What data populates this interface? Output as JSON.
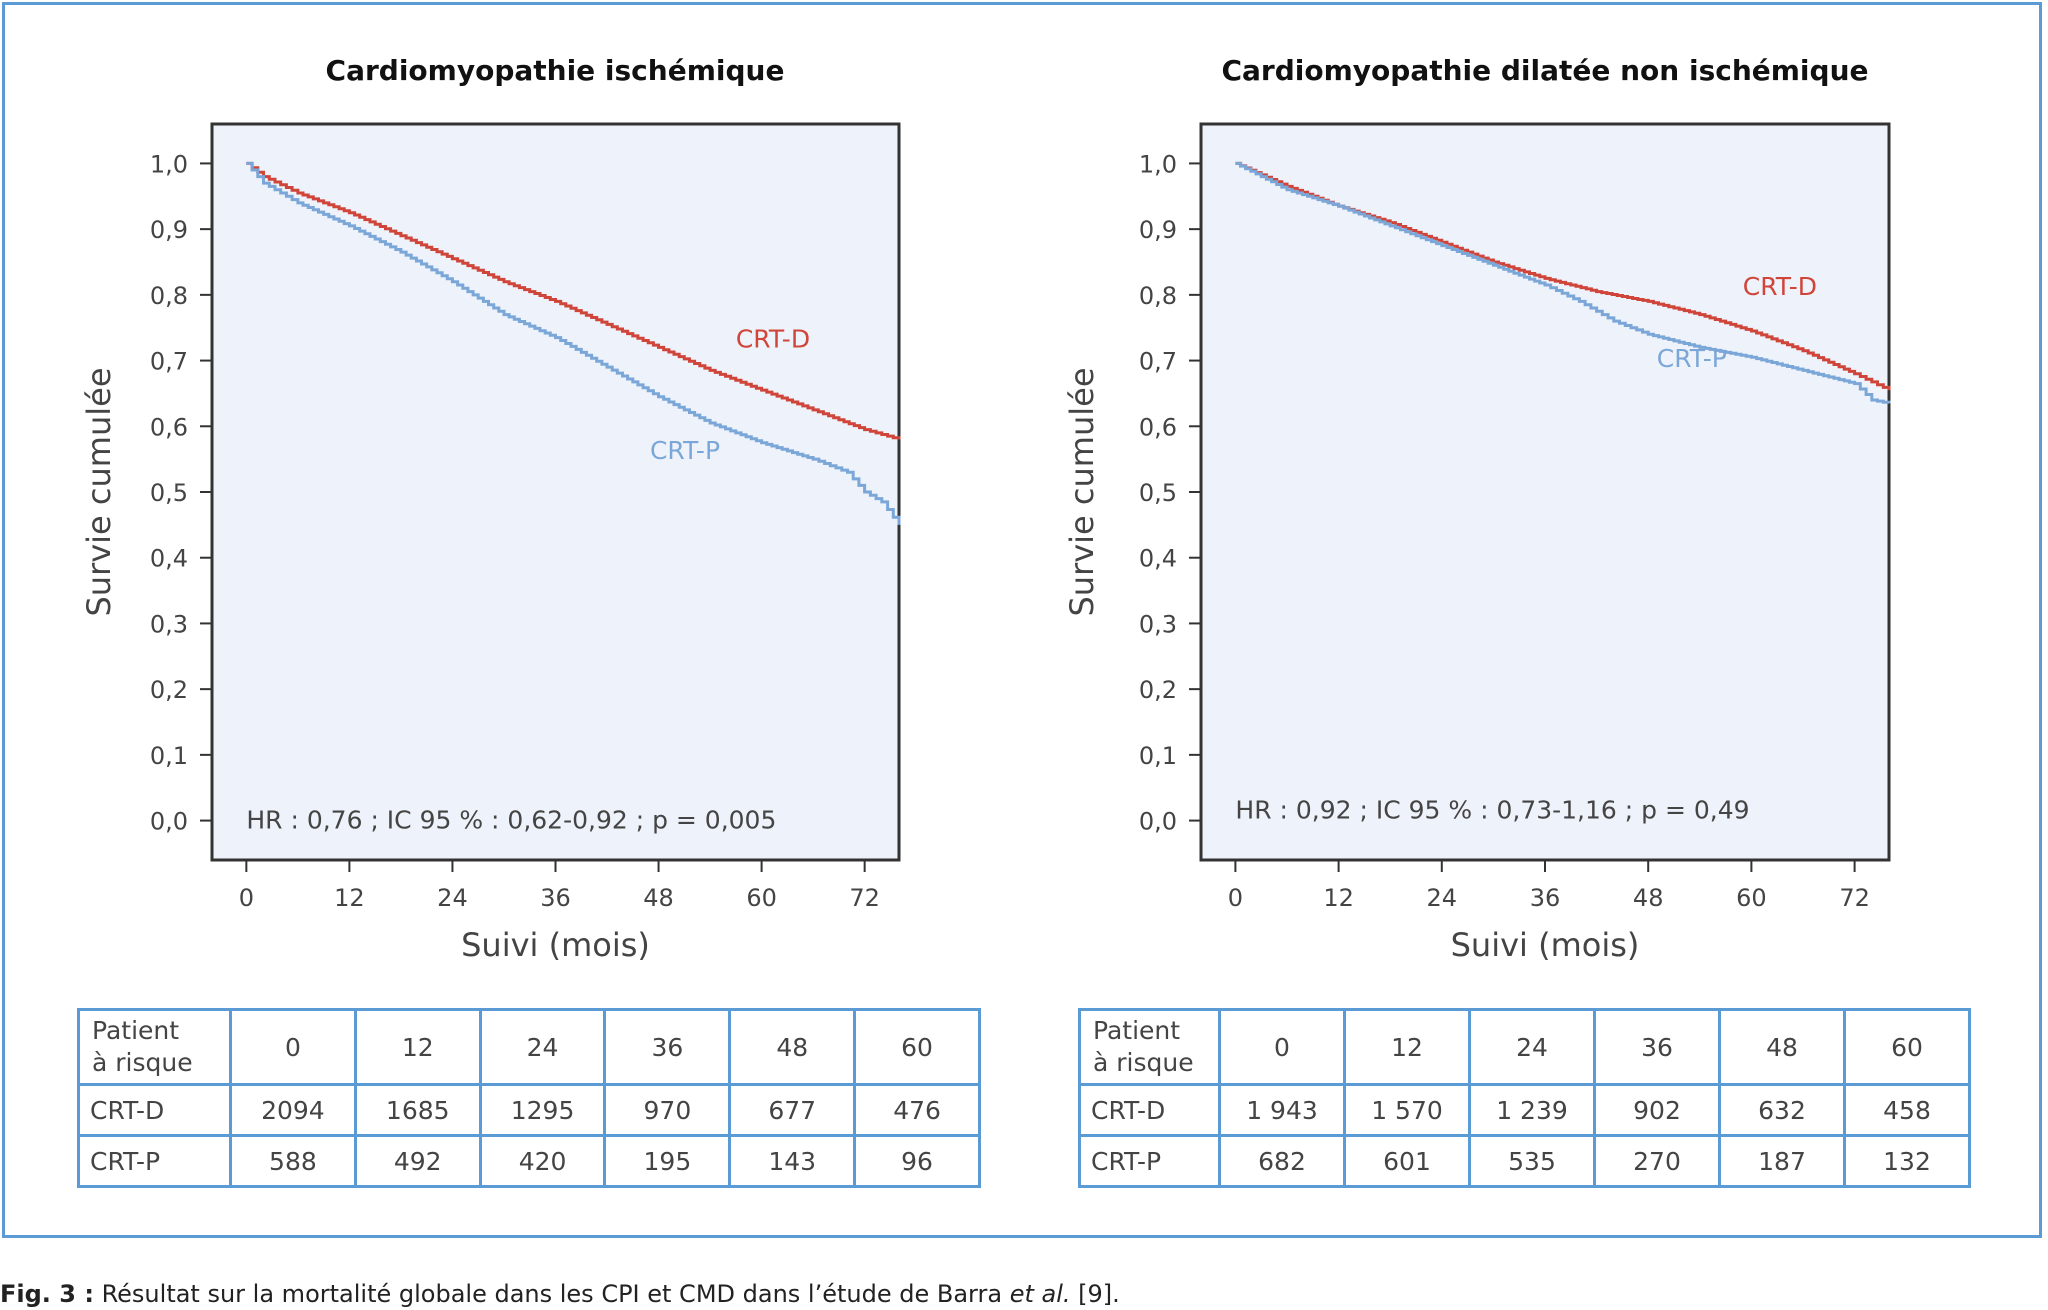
{
  "colors": {
    "crt_d": "#d0453a",
    "crt_p": "#7ba7d8",
    "plot_bg": "#eef2fa",
    "border": "#5b9bd5",
    "axis": "#333333"
  },
  "chart_data": [
    {
      "type": "line",
      "title": "Cardiomyopathie ischémique",
      "xlabel": "Suivi (mois)",
      "ylabel": "Survie cumulée",
      "xlim": [
        -4,
        76
      ],
      "ylim": [
        -0.06,
        1.06
      ],
      "xticks": [
        0,
        12,
        24,
        36,
        48,
        60,
        72
      ],
      "yticks": [
        "0,0",
        "0,1",
        "0,2",
        "0,3",
        "0,4",
        "0,5",
        "0,6",
        "0,7",
        "0,8",
        "0,9",
        "1,0"
      ],
      "annotation": "HR : 0,76 ; IC 95 % : 0,62-0,92 ; p = 0,005",
      "series": [
        {
          "name": "CRT-D",
          "color_key": "crt_d",
          "x": [
            0,
            2,
            6,
            12,
            18,
            24,
            30,
            36,
            42,
            48,
            54,
            60,
            66,
            72,
            76
          ],
          "y": [
            1.0,
            0.98,
            0.955,
            0.925,
            0.89,
            0.855,
            0.82,
            0.79,
            0.755,
            0.72,
            0.685,
            0.655,
            0.625,
            0.595,
            0.58
          ],
          "label_pos": [
            57,
            0.72
          ]
        },
        {
          "name": "CRT-P",
          "color_key": "crt_p",
          "x": [
            0,
            2,
            6,
            12,
            18,
            24,
            30,
            36,
            42,
            48,
            54,
            60,
            66,
            70,
            72,
            74,
            76
          ],
          "y": [
            1.0,
            0.97,
            0.94,
            0.905,
            0.865,
            0.82,
            0.77,
            0.735,
            0.69,
            0.645,
            0.605,
            0.575,
            0.55,
            0.53,
            0.5,
            0.485,
            0.45
          ],
          "label_pos": [
            47,
            0.55
          ]
        }
      ]
    },
    {
      "type": "line",
      "title": "Cardiomyopathie dilatée non ischémique",
      "xlabel": "Suivi (mois)",
      "ylabel": "Survie cumulée",
      "xlim": [
        -4,
        76
      ],
      "ylim": [
        -0.06,
        1.06
      ],
      "xticks": [
        0,
        12,
        24,
        36,
        48,
        60,
        72
      ],
      "yticks": [
        "0,0",
        "0,1",
        "0,2",
        "0,3",
        "0,4",
        "0,5",
        "0,6",
        "0,7",
        "0,8",
        "0,9",
        "1,0"
      ],
      "annotation": "HR : 0,92 ; IC 95 % : 0,73-1,16 ; p = 0,49",
      "series": [
        {
          "name": "CRT-D",
          "color_key": "crt_d",
          "x": [
            0,
            6,
            12,
            18,
            24,
            30,
            36,
            42,
            48,
            54,
            60,
            66,
            72,
            76
          ],
          "y": [
            1.0,
            0.965,
            0.935,
            0.91,
            0.88,
            0.85,
            0.825,
            0.805,
            0.79,
            0.77,
            0.745,
            0.715,
            0.68,
            0.655
          ],
          "label_pos": [
            59,
            0.8
          ]
        },
        {
          "name": "CRT-P",
          "color_key": "crt_p",
          "x": [
            0,
            6,
            12,
            18,
            24,
            30,
            36,
            40,
            44,
            48,
            54,
            60,
            66,
            72,
            74,
            76
          ],
          "y": [
            1.0,
            0.96,
            0.935,
            0.905,
            0.875,
            0.845,
            0.815,
            0.79,
            0.76,
            0.74,
            0.72,
            0.705,
            0.685,
            0.665,
            0.64,
            0.635
          ],
          "label_pos": [
            49,
            0.69
          ]
        }
      ]
    }
  ],
  "risk_tables": [
    {
      "header_label": [
        "Patient",
        "à risque"
      ],
      "columns": [
        "0",
        "12",
        "24",
        "36",
        "48",
        "60"
      ],
      "rows": [
        {
          "label": "CRT-D",
          "values": [
            "2094",
            "1685",
            "1295",
            "970",
            "677",
            "476"
          ]
        },
        {
          "label": "CRT-P",
          "values": [
            "588",
            "492",
            "420",
            "195",
            "143",
            "96"
          ]
        }
      ]
    },
    {
      "header_label": [
        "Patient",
        "à risque"
      ],
      "columns": [
        "0",
        "12",
        "24",
        "36",
        "48",
        "60"
      ],
      "rows": [
        {
          "label": "CRT-D",
          "values": [
            "1 943",
            "1 570",
            "1 239",
            "902",
            "632",
            "458"
          ]
        },
        {
          "label": "CRT-P",
          "values": [
            "682",
            "601",
            "535",
            "270",
            "187",
            "132"
          ]
        }
      ]
    }
  ],
  "caption": {
    "fig_label": "Fig. 3 :",
    "text": " Résultat sur la mortalité globale dans les CPI et CMD dans l’étude de Barra ",
    "italic": "et al.",
    "ref": " [9]."
  }
}
